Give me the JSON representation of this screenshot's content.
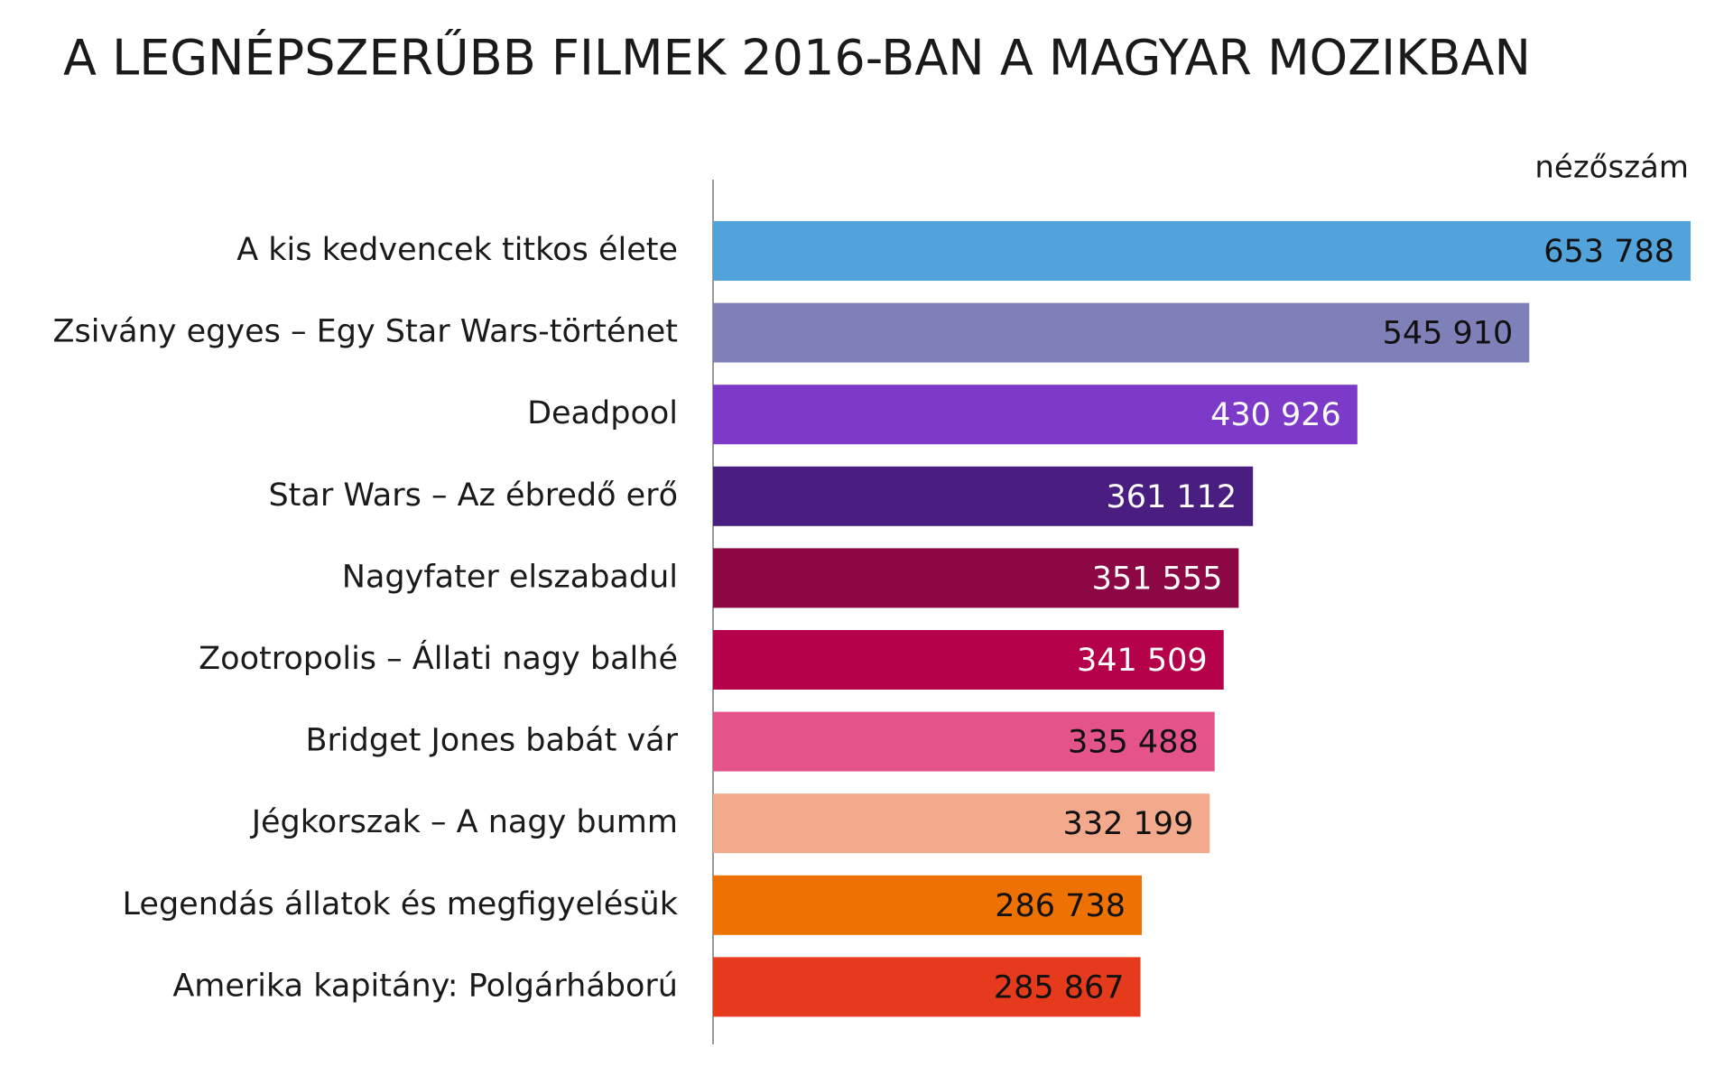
{
  "chart_data": {
    "type": "bar",
    "orientation": "horizontal",
    "title": "A LEGNÉPSZERŰBB FILMEK 2016-BAN A MAGYAR MOZIKBAN",
    "x_label": "nézőszám",
    "categories": [
      "A kis kedvencek titkos élete",
      "Zsivány egyes – Egy Star Wars-történet",
      "Deadpool",
      "Star Wars – Az ébredő erő",
      "Nagyfater elszabadul",
      "Zootropolis – Állati nagy balhé",
      "Bridget Jones babát vár",
      "Jégkorszak – A nagy bumm",
      "Legendás állatok és megfigyelésük",
      "Amerika kapitány: Polgárháború"
    ],
    "values": [
      653788,
      545910,
      430926,
      361112,
      351555,
      341509,
      335488,
      332199,
      286738,
      285867
    ],
    "value_labels": [
      "653 788",
      "545 910",
      "430 926",
      "361 112",
      "351 555",
      "341 509",
      "335 488",
      "332 199",
      "286 738",
      "285 867"
    ],
    "colors": [
      "#52a3db",
      "#8080b8",
      "#7d3ac9",
      "#4a1d80",
      "#8c0845",
      "#b5004a",
      "#e4548a",
      "#f2a98c",
      "#ee7203",
      "#e63a1c"
    ],
    "xlim": [
      0,
      653788
    ]
  }
}
